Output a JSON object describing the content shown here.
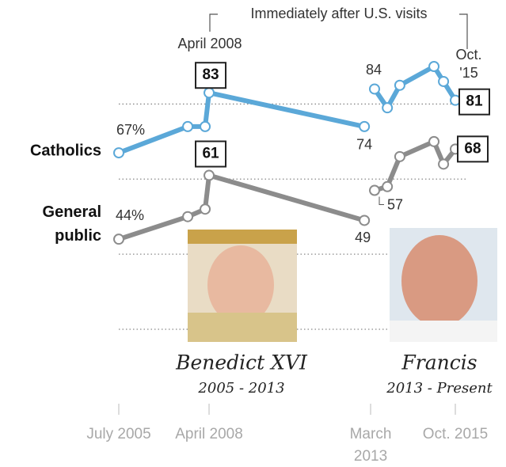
{
  "chart_data": {
    "type": "line",
    "x": [
      2005.5,
      2007.6,
      2008.13,
      2008.25,
      2012.98,
      2013.1,
      2013.29,
      2013.68,
      2014.06,
      2015.1,
      2015.39,
      2015.75
    ],
    "series": [
      {
        "name": "Catholics",
        "color": "#5ba8d8",
        "values": [
          67,
          74,
          74,
          83,
          74,
          null,
          84,
          79,
          85,
          90,
          86,
          81
        ],
        "value_labels": [
          "67%",
          null,
          null,
          "83",
          "74",
          null,
          "84",
          null,
          null,
          null,
          null,
          "81"
        ]
      },
      {
        "name": "General public",
        "color": "#8c8c8c",
        "values": [
          44,
          50,
          52,
          61,
          49,
          null,
          57,
          58,
          66,
          70,
          64,
          68
        ],
        "value_labels": [
          "44%",
          null,
          null,
          "61",
          "49",
          null,
          "57",
          null,
          null,
          null,
          null,
          "68"
        ]
      }
    ],
    "xlim": [
      2005.5,
      2015.75
    ],
    "xticks": [
      {
        "value": 2005.5,
        "label": "July 2005"
      },
      {
        "value": 2008.25,
        "label": "April 2008"
      },
      {
        "value": 2013.17,
        "label": "March 2013"
      },
      {
        "value": 2015.75,
        "label": "Oct. 2015"
      }
    ],
    "ylim": [
      20,
      90
    ],
    "gridlines": [
      20,
      40,
      60,
      80
    ],
    "annotations": {
      "april": "April 2008",
      "visits": "Immediately after U.S. visits",
      "oct": "Oct. '15"
    },
    "popes": [
      {
        "name": "Benedict XVI",
        "years": "2005 - 2013"
      },
      {
        "name": "Francis",
        "years": "2013 - Present"
      }
    ]
  }
}
